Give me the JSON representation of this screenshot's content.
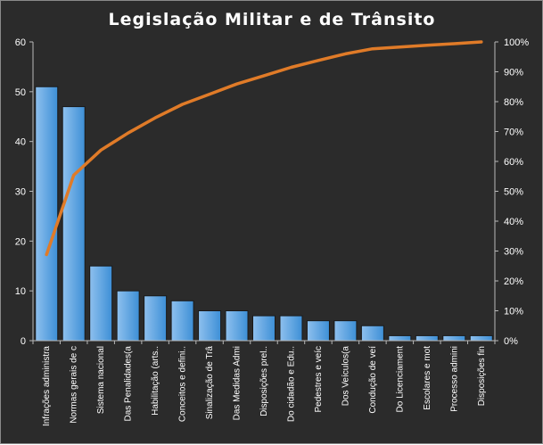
{
  "chart_data": {
    "type": "bar",
    "title": "Legislação  Militar  e de Trânsito",
    "xlabel": "",
    "ylabel": "",
    "ylim": [
      0,
      60
    ],
    "y_ticks": [
      0,
      10,
      20,
      30,
      40,
      50,
      60
    ],
    "y2lim": [
      0,
      100
    ],
    "y2_ticks": [
      "0%",
      "10%",
      "20%",
      "30%",
      "40%",
      "50%",
      "60%",
      "70%",
      "80%",
      "90%",
      "100%"
    ],
    "grid": false,
    "legend": "none",
    "categories": [
      "Infrações administra",
      "Normas gerais de c",
      "Sistema nacional",
      "Das Penalidades(a",
      "Habilitação (arts..",
      "Conceitos e defini..",
      "Sinalização de Trâ",
      "Das Medidas Admi",
      "Disposições prel..",
      "Do cidadão e Edu..",
      "Pedestres e veíc",
      "Dos Veículos(a",
      "Condução de veí",
      "Do Licenciament",
      "Escolares e mot",
      "Processo admini",
      "Disposições fin"
    ],
    "series": [
      {
        "type": "bar",
        "values": [
          51,
          47,
          15,
          10,
          9,
          8,
          6,
          6,
          5,
          5,
          4,
          4,
          3,
          1,
          1,
          1,
          1
        ]
      },
      {
        "type": "line",
        "axis": "secondary",
        "values": [
          28.8,
          55.4,
          63.8,
          69.5,
          74.6,
          79.1,
          82.5,
          85.9,
          88.7,
          91.5,
          93.8,
          96.0,
          97.7,
          98.3,
          98.9,
          99.4,
          100.0
        ]
      }
    ],
    "colors": {
      "background": "#2b2b2b",
      "bar_fill": "#3d8fd6",
      "bar_fill_light": "#8ec0ee",
      "bar_stroke": "#1a1a1a",
      "line": "#e07b28",
      "text": "#ffffff",
      "axis": "#b8b8b8"
    }
  }
}
